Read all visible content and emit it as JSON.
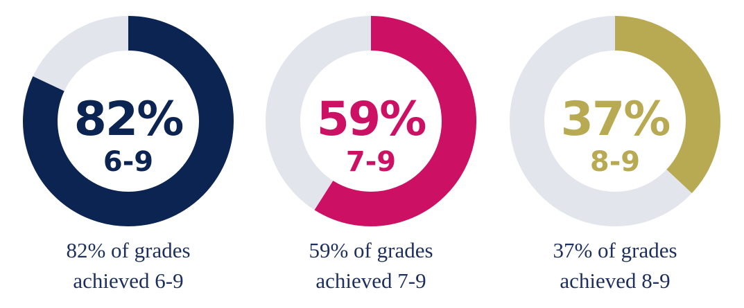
{
  "chart_data": [
    {
      "type": "pie",
      "value": 82,
      "center_percent": "82%",
      "center_range": "6-9",
      "caption_line1": "82% of grades",
      "caption_line2": "achieved 6-9",
      "color": "#0b2452",
      "track_color": "#e3e5ec"
    },
    {
      "type": "pie",
      "value": 59,
      "center_percent": "59%",
      "center_range": "7-9",
      "caption_line1": "59% of grades",
      "caption_line2": "achieved 7-9",
      "color": "#cc1063",
      "track_color": "#e3e5ec"
    },
    {
      "type": "pie",
      "value": 37,
      "center_percent": "37%",
      "center_range": "8-9",
      "caption_line1": "37% of grades",
      "caption_line2": "achieved 8-9",
      "color": "#b8aa52",
      "track_color": "#e3e5ec"
    }
  ]
}
